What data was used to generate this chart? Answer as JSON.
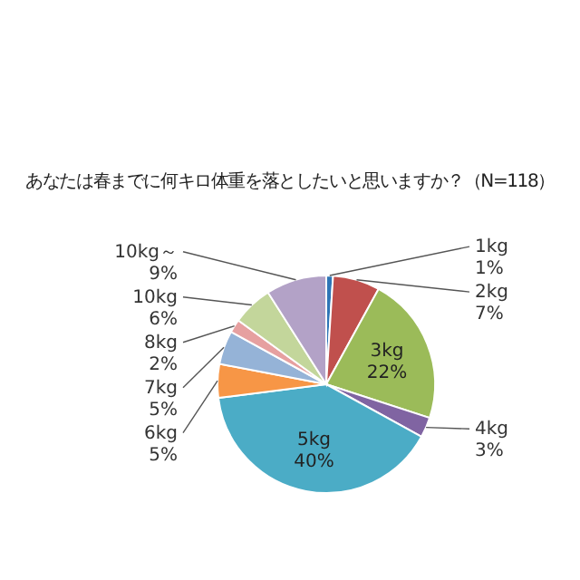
{
  "chart_data": {
    "type": "pie",
    "title": "あなたは春までに何キロ体重を落としたいと思いますか？（N=118）",
    "categories": [
      "1kg",
      "2kg",
      "3kg",
      "4kg",
      "5kg",
      "6kg",
      "7kg",
      "8kg",
      "10kg",
      "10kg～"
    ],
    "values": [
      1,
      7,
      22,
      3,
      40,
      5,
      5,
      2,
      6,
      9
    ],
    "value_labels": [
      "1%",
      "7%",
      "22%",
      "3%",
      "40%",
      "5%",
      "5%",
      "2%",
      "6%",
      "9%"
    ],
    "colors": [
      "#2e75b6",
      "#c0504d",
      "#9bbb59",
      "#8064a2",
      "#4bacc6",
      "#f79646",
      "#95b3d7",
      "#e6a0a0",
      "#c3d69b",
      "#b3a2c7"
    ],
    "legend": false
  }
}
